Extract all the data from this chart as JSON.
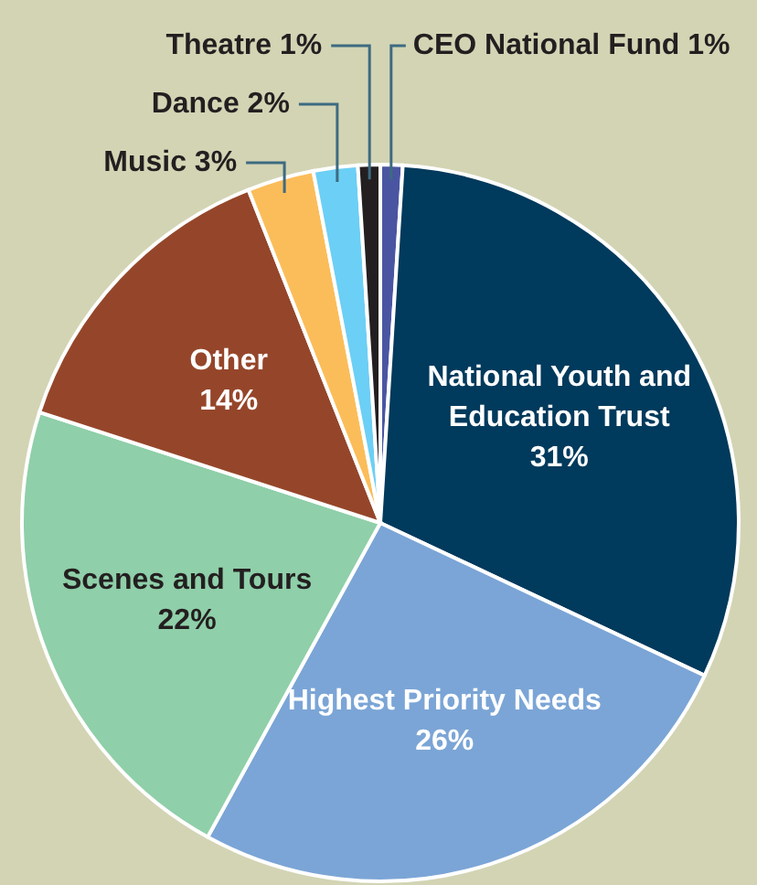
{
  "chart_data": {
    "type": "pie",
    "categories": [
      "CEO National Fund",
      "National Youth and Education Trust",
      "Highest Priority Needs",
      "Scenes and Tours",
      "Other",
      "Music",
      "Dance",
      "Theatre"
    ],
    "values": [
      1,
      31,
      26,
      22,
      14,
      3,
      2,
      1
    ],
    "value_labels": [
      "1%",
      "31%",
      "26%",
      "22%",
      "14%",
      "3%",
      "2%",
      "1%"
    ],
    "colors": [
      "#4a55a2",
      "#003a5c",
      "#7ba5d6",
      "#8fcfa9",
      "#95462a",
      "#fbbd5a",
      "#6ccff5",
      "#231f20"
    ],
    "legend": false
  }
}
